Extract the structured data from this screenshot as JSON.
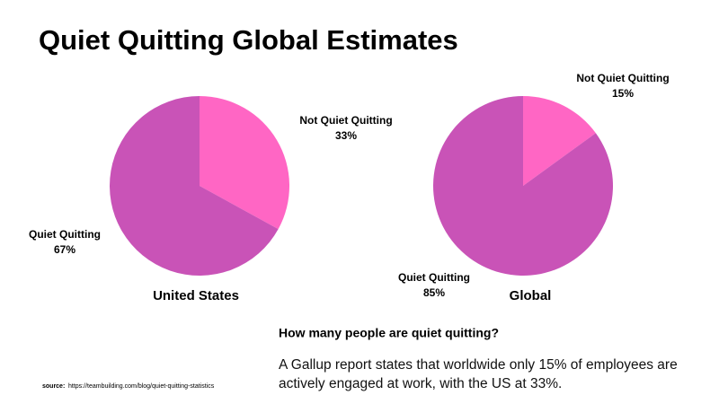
{
  "title": "Quiet Quitting Global Estimates",
  "question": "How many people are quiet quitting?",
  "description": "A Gallup report states that worldwide only 15% of employees are actively engaged at work, with the US at 33%.",
  "source": {
    "label": "source:",
    "url": "https://teambuilding.com/blog/quiet-quitting-statistics"
  },
  "chart_data": [
    {
      "type": "pie",
      "title": "United States",
      "categories": [
        "Not Quiet Quitting",
        "Quiet Quitting"
      ],
      "values": [
        33,
        67
      ],
      "value_labels": [
        "33%",
        "67%"
      ],
      "colors": [
        "#ff66c4",
        "#c953b7"
      ]
    },
    {
      "type": "pie",
      "title": "Global",
      "categories": [
        "Not Quiet Quitting",
        "Quiet Quitting"
      ],
      "values": [
        15,
        85
      ],
      "value_labels": [
        "15%",
        "85%"
      ],
      "colors": [
        "#ff66c4",
        "#c953b7"
      ]
    }
  ]
}
